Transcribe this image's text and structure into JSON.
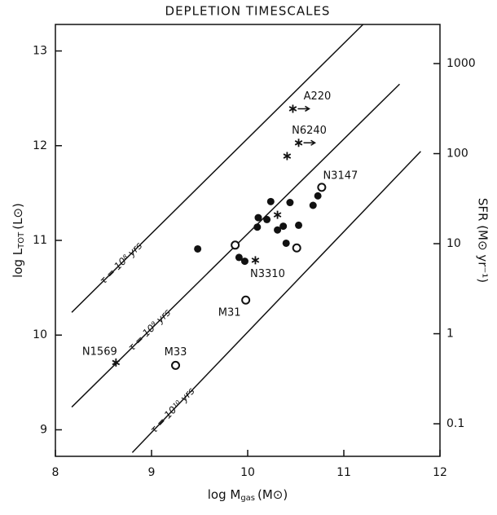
{
  "chart_data": {
    "type": "scatter",
    "title": "DEPLETION TIMESCALES",
    "x_label": {
      "main": "log M",
      "sub": "gas",
      "unit": "(M⊙)"
    },
    "y_label": {
      "main": "log L",
      "sub": "TOT",
      "unit": "(L⊙)"
    },
    "y2_label": "SFR (M⊙ yr⁻¹)",
    "xlim": [
      8,
      12
    ],
    "xticks": [
      8,
      9,
      10,
      11,
      12
    ],
    "ylim": [
      8.72,
      13.28
    ],
    "yticks": [
      9,
      10,
      11,
      12,
      13
    ],
    "y2lim": [
      0.0435,
      2720
    ],
    "y2ticks": [
      0.1,
      1,
      10,
      100,
      1000
    ],
    "y2_log": true,
    "color": "#111111",
    "lines": [
      {
        "label": "τ = 10⁸ yrs",
        "x": [
          8.17,
          11.2
        ],
        "y": [
          10.24,
          13.28
        ]
      },
      {
        "label": "τ = 10⁹ yrs",
        "x": [
          8.17,
          11.58
        ],
        "y": [
          9.24,
          12.65
        ]
      },
      {
        "label": "τ = 10¹⁰ yrs",
        "x": [
          8.8,
          11.8
        ],
        "y": [
          8.76,
          11.94
        ]
      }
    ],
    "series": [
      {
        "marker": "filled",
        "x": [
          9.48,
          9.91,
          9.97,
          10.1,
          10.11,
          10.2,
          10.24,
          10.31,
          10.37,
          10.4,
          10.44,
          10.53,
          10.68,
          10.73
        ],
        "y": [
          10.91,
          10.82,
          10.78,
          11.14,
          11.24,
          11.22,
          11.41,
          11.11,
          11.15,
          10.97,
          11.4,
          11.16,
          11.37,
          11.47
        ]
      },
      {
        "marker": "open",
        "x": [
          9.87,
          9.98,
          9.25,
          10.51,
          10.77
        ],
        "y": [
          10.95,
          10.37,
          9.68,
          10.92,
          11.56
        ],
        "labels": [
          null,
          "M31",
          "M33",
          null,
          "N3147"
        ]
      },
      {
        "marker": "star",
        "x": [
          10.47,
          10.53,
          10.41,
          10.31,
          10.08,
          8.63
        ],
        "y": [
          12.39,
          12.03,
          11.89,
          11.27,
          10.79,
          9.71
        ],
        "labels": [
          "A220",
          "N6240",
          null,
          null,
          "N3310",
          "N1569"
        ],
        "x_limit_arrow": [
          true,
          true,
          false,
          false,
          false,
          false
        ]
      }
    ]
  }
}
